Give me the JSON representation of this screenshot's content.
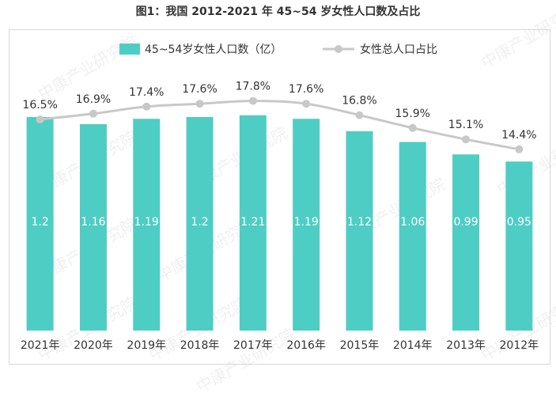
{
  "title": "图1：我国 2012-2021 年 45~54 岁女性人口数及占比",
  "watermark": "中康产业研究院",
  "colors": {
    "bar": "#4ECDC4",
    "line": "#c8c8c8",
    "text": "#333333",
    "bar_label": "#ffffff"
  },
  "chart_data": {
    "type": "bar",
    "categories": [
      "2021年",
      "2020年",
      "2019年",
      "2018年",
      "2017年",
      "2016年",
      "2015年",
      "2014年",
      "2013年",
      "2012年"
    ],
    "series": [
      {
        "name": "45~54岁女性人口数（亿）",
        "type": "bar",
        "values": [
          1.2,
          1.16,
          1.19,
          1.2,
          1.21,
          1.19,
          1.12,
          1.06,
          0.99,
          0.95
        ],
        "labels": [
          "1.2",
          "1.16",
          "1.19",
          "1.2",
          "1.21",
          "1.19",
          "1.12",
          "1.06",
          "0.99",
          "0.95"
        ]
      },
      {
        "name": "女性总人口占比",
        "type": "line",
        "values": [
          16.5,
          16.9,
          17.4,
          17.6,
          17.8,
          17.6,
          16.8,
          15.9,
          15.1,
          14.4
        ],
        "labels": [
          "16.5%",
          "16.9%",
          "17.4%",
          "17.6%",
          "17.8%",
          "17.6%",
          "16.8%",
          "15.9%",
          "15.1%",
          "14.4%"
        ]
      }
    ],
    "bar_ylim": [
      0,
      1.5
    ],
    "line_ylim": [
      0,
      20
    ],
    "legend_position": "top",
    "grid": false
  }
}
